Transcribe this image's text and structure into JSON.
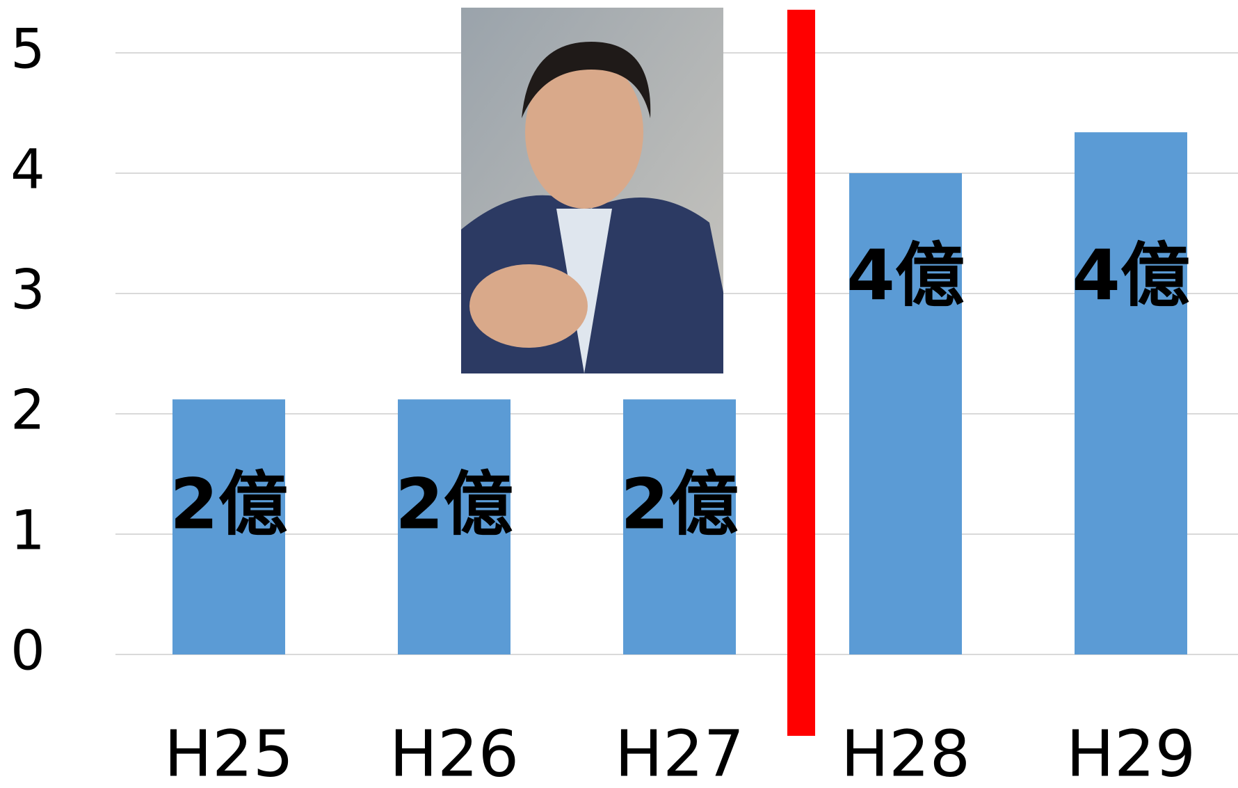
{
  "chart_data": {
    "type": "bar",
    "categories": [
      "H25",
      "H26",
      "H27",
      "H28",
      "H29"
    ],
    "values": [
      2.12,
      2.12,
      2.12,
      4,
      4.34
    ],
    "value_labels": [
      "2億",
      "2億",
      "2億",
      "4億",
      "4億"
    ],
    "color": "#5b9bd5",
    "ylim": [
      0,
      5
    ],
    "yticks": [
      0,
      1,
      2,
      3,
      4,
      5
    ],
    "grid": true
  }
}
